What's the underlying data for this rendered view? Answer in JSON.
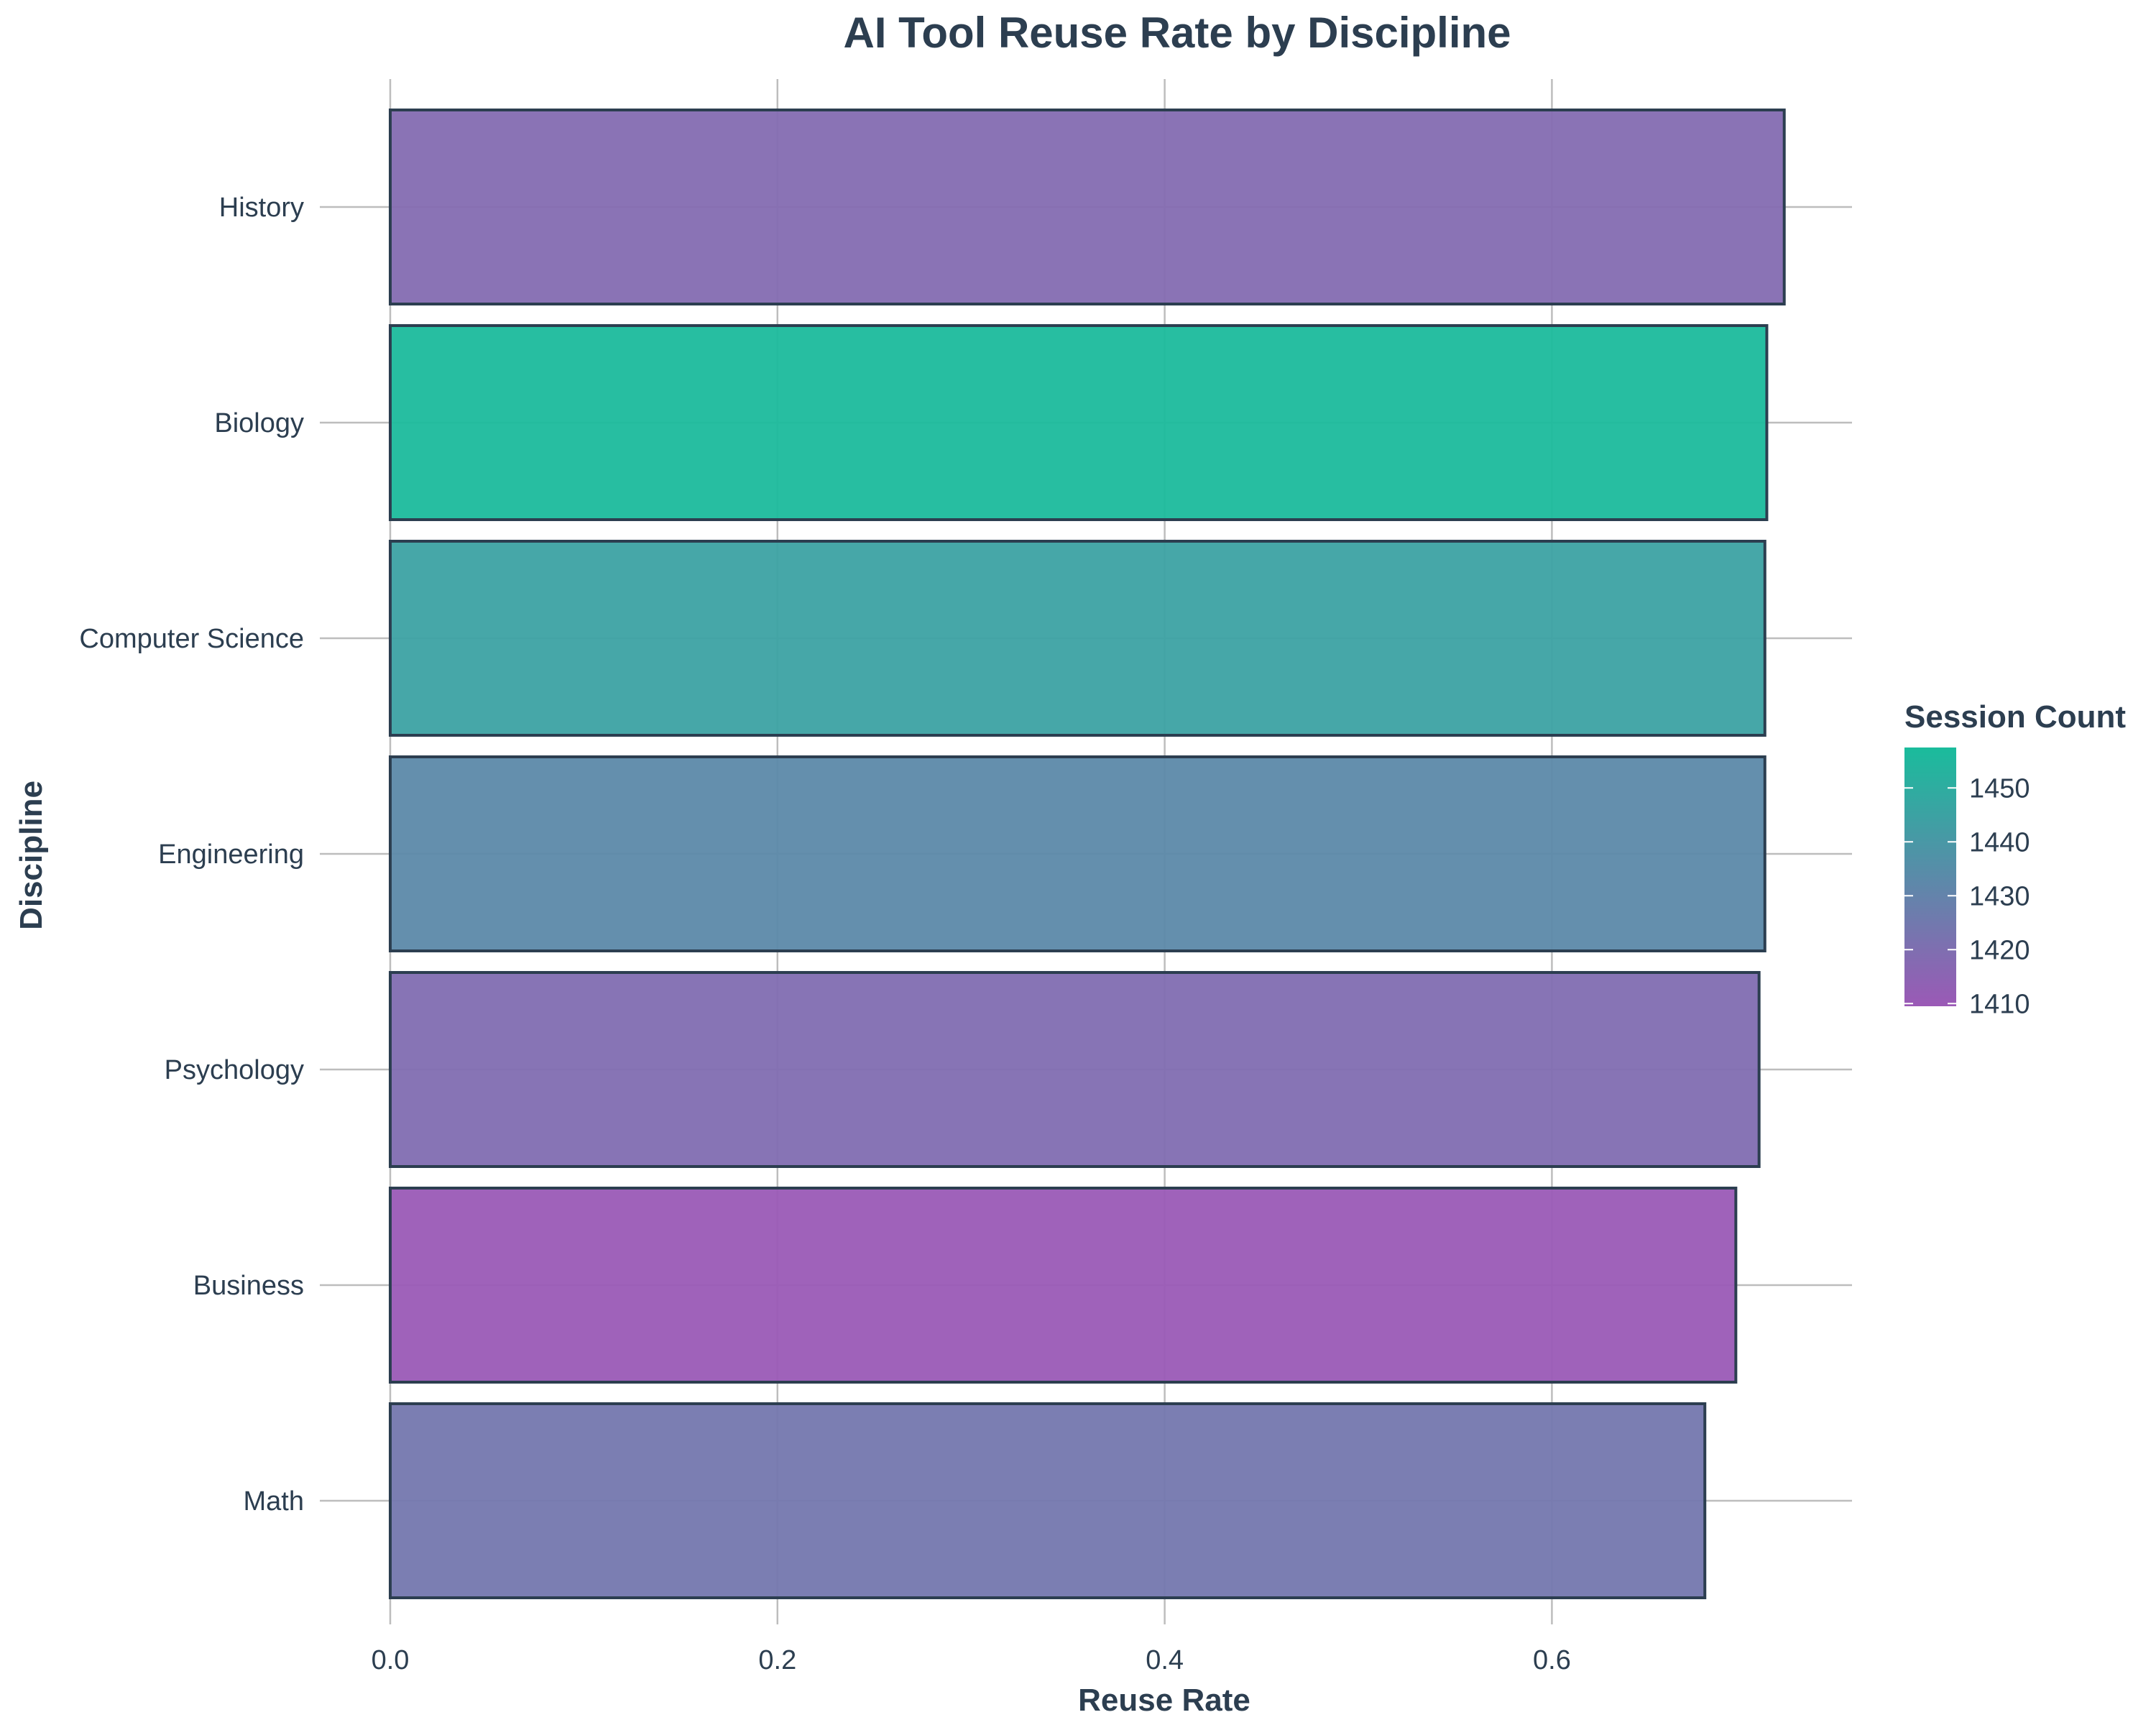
{
  "chart_data": {
    "type": "bar",
    "orientation": "horizontal",
    "title": "AI Tool Reuse Rate by Discipline",
    "xlabel": "Reuse Rate",
    "ylabel": "Discipline",
    "xlim": [
      0,
      0.755
    ],
    "x_ticks": [
      "0.0",
      "0.2",
      "0.4",
      "0.6"
    ],
    "grid": true,
    "legend": {
      "title": "Session Count",
      "placement": "right",
      "ticks": [
        "1450",
        "1440",
        "1430",
        "1420",
        "1410"
      ],
      "range": [
        1409.5,
        1457.5
      ],
      "low_color": "#9b59b6",
      "high_color": "#1abc9c"
    },
    "categories": [
      "History",
      "Biology",
      "Computer Science",
      "Engineering",
      "Psychology",
      "Business",
      "Math"
    ],
    "values": [
      0.72,
      0.711,
      0.71,
      0.71,
      0.707,
      0.695,
      0.679
    ],
    "session_counts": [
      1418,
      1457,
      1445,
      1433,
      1419,
      1410,
      1424
    ],
    "bar_edge_color": "#2c3e50",
    "text_color": "#2c3e50",
    "grid_color": "#bdbdbd"
  }
}
